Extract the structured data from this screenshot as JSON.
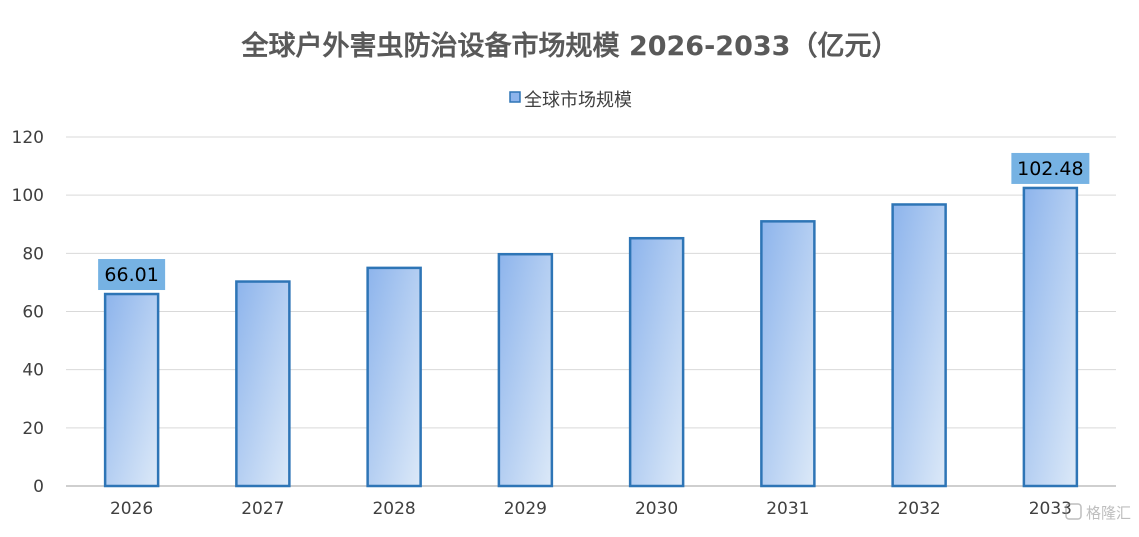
{
  "chart_data": {
    "type": "bar",
    "title": "全球户外害虫防治设备市场规模 2026-2033（亿元）",
    "categories": [
      "2026",
      "2027",
      "2028",
      "2029",
      "2030",
      "2031",
      "2032",
      "2033"
    ],
    "series": [
      {
        "name": "全球市场规模",
        "values": [
          66.01,
          70.3,
          75.0,
          79.7,
          85.2,
          91.0,
          96.8,
          102.48
        ]
      }
    ],
    "data_labels": [
      {
        "category": "2026",
        "text": "66.01"
      },
      {
        "category": "2033",
        "text": "102.48"
      }
    ],
    "y_ticks": [
      "0",
      "20",
      "40",
      "60",
      "80",
      "100",
      "120"
    ],
    "ylim": [
      0,
      120
    ],
    "grid": true,
    "legend_position": "top-center",
    "colors": {
      "bar_fill_dark": "#8db4ec",
      "bar_fill_light": "#dce9f8",
      "bar_stroke": "#2e75b6",
      "data_label_bg": "#76b2e3",
      "grid": "#d9d9d9",
      "axis": "#bfbfbf",
      "title_text": "#595959",
      "tick_text": "#404040"
    }
  },
  "watermark": "格隆汇"
}
